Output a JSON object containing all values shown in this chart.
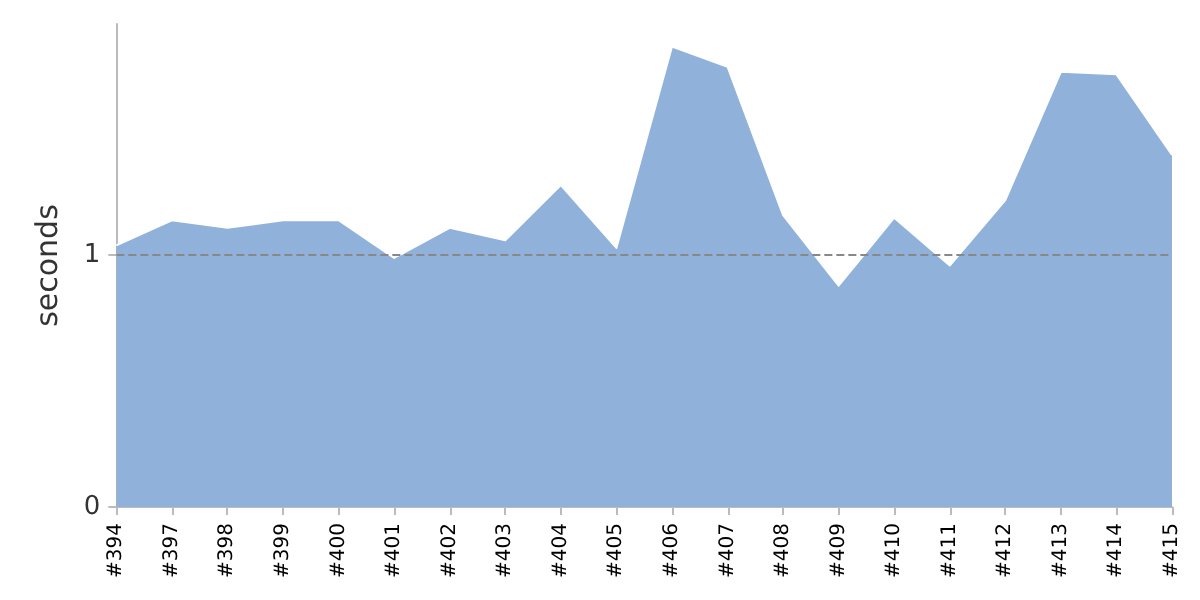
{
  "chart_data": {
    "type": "area",
    "ylabel": "seconds",
    "categories": [
      "#394",
      "#397",
      "#398",
      "#399",
      "#400",
      "#401",
      "#402",
      "#403",
      "#404",
      "#405",
      "#406",
      "#407",
      "#408",
      "#409",
      "#410",
      "#411",
      "#412",
      "#413",
      "#414",
      "#415"
    ],
    "series": [
      {
        "color": "#8fb1da",
        "values": [
          1.04,
          1.14,
          1.11,
          1.14,
          1.14,
          0.99,
          1.11,
          1.06,
          1.28,
          1.03,
          1.83,
          1.75,
          1.16,
          0.88,
          1.15,
          0.96,
          1.22,
          1.73,
          1.72,
          1.4
        ]
      }
    ],
    "ylim": [
      0,
      1.92
    ],
    "yticks": [
      0,
      1
    ],
    "grid": false,
    "ref_lines": [
      {
        "axis": "y",
        "value": 1,
        "color": "#888888",
        "line_style": "dashed"
      }
    ]
  }
}
